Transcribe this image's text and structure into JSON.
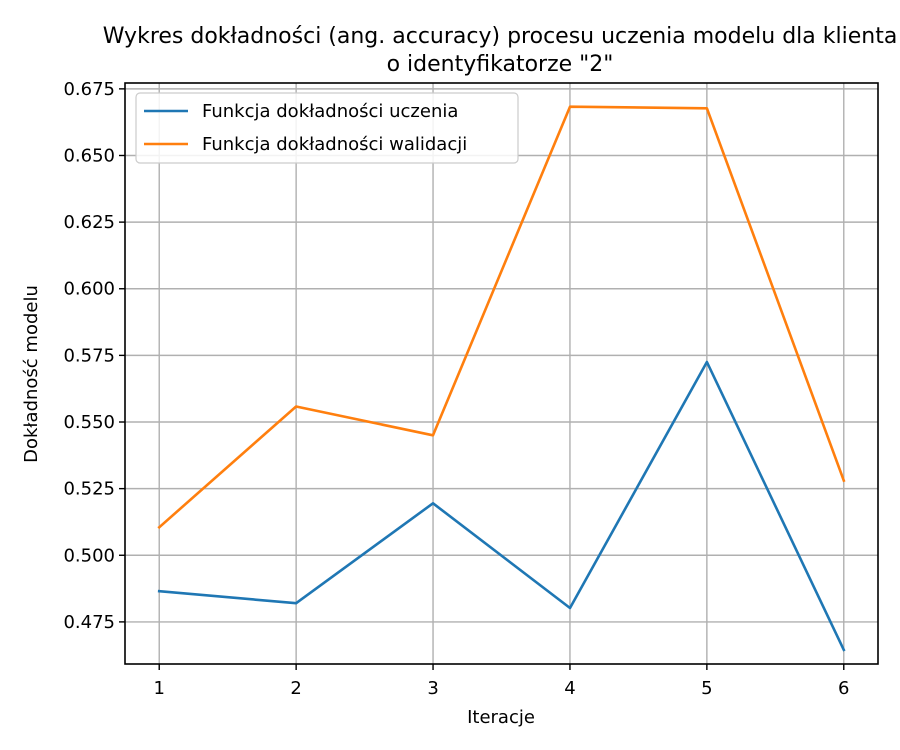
{
  "chart_data": {
    "type": "line",
    "title": "Wykres dokładności (ang. accuracy) procesu uczenia modelu dla klienta",
    "subtitle": "o identyfikatorze \"2\"",
    "xlabel": "Iteracje",
    "ylabel": "Dokładność modelu",
    "x": [
      1,
      2,
      3,
      4,
      5,
      6
    ],
    "x_ticks": [
      "1",
      "2",
      "3",
      "4",
      "5",
      "6"
    ],
    "xlim": [
      0.75,
      6.25
    ],
    "ylim": [
      0.4592,
      0.6772
    ],
    "y_ticks": [
      "0.475",
      "0.500",
      "0.525",
      "0.550",
      "0.575",
      "0.600",
      "0.625",
      "0.650",
      "0.675"
    ],
    "grid": true,
    "legend_position": "top-left",
    "series": [
      {
        "name": "Funkcja dokładności uczenia",
        "color": "#1f77b4",
        "values": [
          0.4865,
          0.482,
          0.5195,
          0.4802,
          0.5725,
          0.4645
        ]
      },
      {
        "name": "Funkcja dokładności walidacji",
        "color": "#ff7f0e",
        "values": [
          0.5105,
          0.5558,
          0.545,
          0.6683,
          0.6677,
          0.528
        ]
      }
    ]
  }
}
